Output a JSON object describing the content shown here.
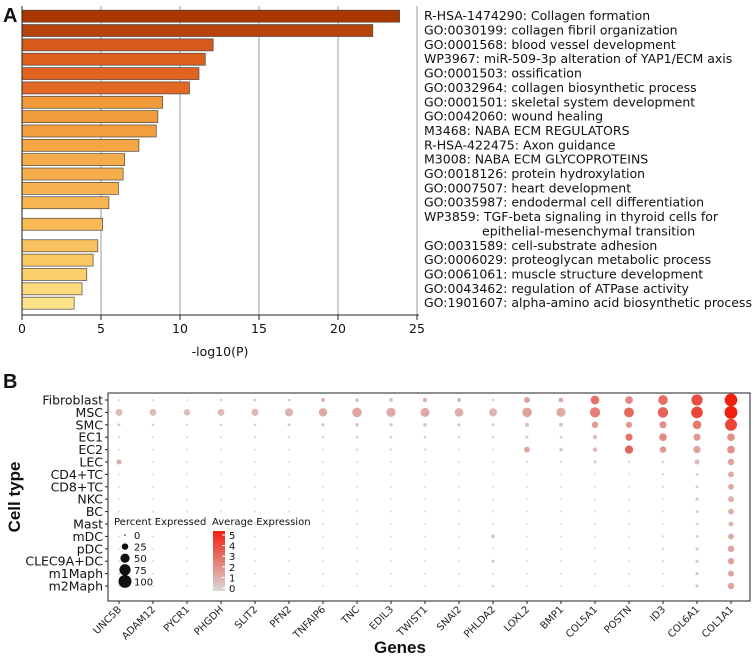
{
  "panel_a_label": "A",
  "panel_b_label": "B",
  "chart_data": [
    {
      "type": "bar",
      "orientation": "horizontal",
      "xlabel": "-log10(P)",
      "xlim": [
        0,
        25
      ],
      "xticks": [
        "0",
        "5",
        "10",
        "15",
        "20",
        "25"
      ],
      "grid": true,
      "terms": [
        {
          "lines": [
            "R-HSA-1474290: Collagen formation"
          ],
          "value": 23.9,
          "color": "#a83700"
        },
        {
          "lines": [
            "GO:0030199: collagen fibril organization"
          ],
          "value": 22.2,
          "color": "#b84308"
        },
        {
          "lines": [
            "GO:0001568: blood vessel development"
          ],
          "value": 12.1,
          "color": "#d85a1a"
        },
        {
          "lines": [
            "WP3967: miR-509-3p alteration of YAP1/ECM axis"
          ],
          "value": 11.6,
          "color": "#dd5f1e"
        },
        {
          "lines": [
            "GO:0001503: ossification"
          ],
          "value": 11.2,
          "color": "#e06322"
        },
        {
          "lines": [
            "GO:0032964: collagen biosynthetic process"
          ],
          "value": 10.6,
          "color": "#e26824"
        },
        {
          "lines": [
            "GO:0001501: skeletal system development"
          ],
          "value": 8.9,
          "color": "#f29a3a"
        },
        {
          "lines": [
            "GO:0042060: wound healing"
          ],
          "value": 8.6,
          "color": "#f39c3c"
        },
        {
          "lines": [
            "M3468: NABA ECM REGULATORS"
          ],
          "value": 8.5,
          "color": "#f39e3e"
        },
        {
          "lines": [
            "R-HSA-422475: Axon guidance"
          ],
          "value": 7.4,
          "color": "#f5a544"
        },
        {
          "lines": [
            "M3008: NABA ECM GLYCOPROTEINS"
          ],
          "value": 6.5,
          "color": "#f6ac4a"
        },
        {
          "lines": [
            "GO:0018126: protein hydroxylation"
          ],
          "value": 6.4,
          "color": "#f6ae4c"
        },
        {
          "lines": [
            "GO:0007507: heart development"
          ],
          "value": 6.1,
          "color": "#f7b14e"
        },
        {
          "lines": [
            "GO:0035987: endodermal cell differentiation"
          ],
          "value": 5.5,
          "color": "#f8b652"
        },
        {
          "lines": [
            "WP3859: TGF-beta signaling in thyroid cells for",
            "epithelial-mesenchymal transition"
          ],
          "value": 5.1,
          "color": "#f8ba55"
        },
        {
          "lines": [
            "GO:0031589: cell-substrate adhesion"
          ],
          "value": 4.8,
          "color": "#f9c25e"
        },
        {
          "lines": [
            "GO:0006029: proteoglycan metabolic process"
          ],
          "value": 4.5,
          "color": "#f9c863"
        },
        {
          "lines": [
            "GO:0061061: muscle structure development"
          ],
          "value": 4.1,
          "color": "#facf6c"
        },
        {
          "lines": [
            "GO:0043462: regulation of ATPase activity"
          ],
          "value": 3.8,
          "color": "#fbd97c"
        },
        {
          "lines": [
            "GO:1901607: alpha-amino acid biosynthetic process"
          ],
          "value": 3.3,
          "color": "#fce28a"
        }
      ]
    },
    {
      "type": "scatter",
      "subtype": "dotplot",
      "xlabel": "Genes",
      "ylabel": "Cell type",
      "genes": [
        "UNC5B",
        "ADAM12",
        "PYCR1",
        "PHGDH",
        "SLIT2",
        "PFN2",
        "TNFAIP6",
        "TNC",
        "EDIL3",
        "TWIST1",
        "SNAI2",
        "PHLDA2",
        "LOXL2",
        "BMP1",
        "COL5A1",
        "POSTN",
        "ID3",
        "COL6A1",
        "COL1A1"
      ],
      "cell_types": [
        "Fibroblast",
        "MSC",
        "SMC",
        "EC1",
        "EC2",
        "LEC",
        "CD4+TC",
        "CD8+TC",
        "NKC",
        "BC",
        "Mast",
        "mDC",
        "pDC",
        "CLEC9A+DC",
        "m1Maph",
        "m2Maph"
      ],
      "legend_size": {
        "title": "Percent Expressed",
        "values": [
          0,
          25,
          50,
          75,
          100
        ],
        "labels": [
          "0",
          "25",
          "50",
          "75",
          "100"
        ]
      },
      "legend_color": {
        "title": "Average Expression",
        "range": [
          0,
          5
        ],
        "labels": [
          "5",
          "4",
          "3",
          "2",
          "1",
          "0"
        ],
        "low_color": "#d9d9d9",
        "high_color": "#ef2010"
      },
      "percent": [
        [
          2,
          2,
          2,
          3,
          5,
          4,
          10,
          8,
          8,
          12,
          9,
          3,
          20,
          15,
          45,
          35,
          55,
          75,
          95
        ],
        [
          30,
          28,
          25,
          28,
          30,
          40,
          42,
          55,
          50,
          48,
          45,
          38,
          55,
          50,
          62,
          58,
          65,
          80,
          98
        ],
        [
          5,
          4,
          3,
          4,
          4,
          5,
          6,
          8,
          7,
          8,
          6,
          5,
          10,
          9,
          25,
          22,
          30,
          45,
          85
        ],
        [
          3,
          2,
          2,
          2,
          3,
          3,
          3,
          4,
          4,
          4,
          3,
          3,
          6,
          5,
          10,
          30,
          35,
          30,
          35
        ],
        [
          2,
          2,
          2,
          2,
          2,
          2,
          2,
          3,
          3,
          3,
          2,
          2,
          20,
          8,
          12,
          40,
          25,
          30,
          35
        ],
        [
          15,
          2,
          2,
          2,
          2,
          2,
          2,
          2,
          2,
          2,
          2,
          2,
          3,
          3,
          5,
          3,
          4,
          15,
          25
        ],
        [
          2,
          2,
          2,
          2,
          2,
          2,
          2,
          2,
          2,
          2,
          2,
          2,
          2,
          2,
          2,
          2,
          3,
          5,
          20
        ],
        [
          2,
          2,
          2,
          2,
          2,
          2,
          2,
          2,
          2,
          2,
          2,
          2,
          2,
          2,
          2,
          2,
          3,
          5,
          20
        ],
        [
          2,
          2,
          2,
          2,
          2,
          2,
          2,
          2,
          2,
          2,
          2,
          2,
          2,
          2,
          2,
          2,
          2,
          6,
          20
        ],
        [
          2,
          2,
          2,
          2,
          2,
          2,
          2,
          2,
          2,
          2,
          2,
          2,
          2,
          2,
          2,
          2,
          2,
          5,
          20
        ],
        [
          2,
          2,
          2,
          2,
          2,
          2,
          2,
          2,
          2,
          2,
          2,
          2,
          2,
          2,
          2,
          2,
          2,
          4,
          15
        ],
        [
          2,
          2,
          2,
          2,
          2,
          2,
          2,
          2,
          2,
          2,
          2,
          8,
          2,
          2,
          2,
          2,
          3,
          5,
          20
        ],
        [
          2,
          2,
          2,
          2,
          2,
          2,
          2,
          2,
          2,
          2,
          2,
          2,
          2,
          2,
          2,
          2,
          3,
          6,
          25
        ],
        [
          2,
          2,
          2,
          2,
          2,
          2,
          2,
          2,
          2,
          2,
          2,
          6,
          2,
          2,
          2,
          2,
          3,
          6,
          25
        ],
        [
          2,
          2,
          2,
          2,
          2,
          2,
          2,
          2,
          2,
          2,
          2,
          2,
          2,
          2,
          2,
          2,
          2,
          6,
          22
        ],
        [
          2,
          2,
          2,
          2,
          2,
          2,
          2,
          2,
          2,
          2,
          2,
          4,
          2,
          2,
          2,
          2,
          2,
          6,
          25
        ]
      ],
      "expression": [
        [
          0.3,
          0.3,
          0.3,
          0.4,
          0.6,
          0.5,
          1.0,
          0.8,
          0.8,
          1.0,
          0.9,
          0.4,
          1.6,
          1.2,
          2.8,
          2.2,
          2.9,
          3.8,
          5.0
        ],
        [
          0.8,
          0.8,
          0.7,
          0.8,
          0.9,
          1.0,
          1.3,
          1.4,
          1.3,
          1.3,
          1.2,
          1.0,
          1.5,
          1.3,
          2.4,
          3.0,
          3.2,
          4.0,
          5.3
        ],
        [
          0.4,
          0.3,
          0.3,
          0.3,
          0.3,
          0.4,
          0.5,
          0.6,
          0.5,
          0.6,
          0.5,
          0.4,
          0.7,
          0.6,
          1.6,
          1.8,
          2.0,
          2.6,
          4.0
        ],
        [
          0.2,
          0.2,
          0.2,
          0.2,
          0.2,
          0.2,
          0.2,
          0.3,
          0.3,
          0.3,
          0.2,
          0.2,
          0.4,
          0.3,
          0.8,
          2.8,
          2.2,
          1.8,
          2.0
        ],
        [
          0.2,
          0.2,
          0.2,
          0.2,
          0.2,
          0.2,
          0.2,
          0.2,
          0.2,
          0.2,
          0.2,
          0.2,
          1.4,
          0.6,
          0.8,
          3.2,
          1.8,
          1.6,
          2.0
        ],
        [
          1.2,
          0.2,
          0.2,
          0.2,
          0.2,
          0.2,
          0.2,
          0.2,
          0.2,
          0.2,
          0.2,
          0.2,
          0.2,
          0.2,
          0.3,
          0.2,
          0.3,
          0.8,
          1.5
        ],
        [
          0.1,
          0.1,
          0.1,
          0.1,
          0.1,
          0.1,
          0.1,
          0.1,
          0.1,
          0.1,
          0.1,
          0.1,
          0.1,
          0.1,
          0.1,
          0.1,
          0.2,
          0.4,
          1.3
        ],
        [
          0.1,
          0.1,
          0.1,
          0.1,
          0.1,
          0.1,
          0.1,
          0.1,
          0.1,
          0.1,
          0.1,
          0.1,
          0.1,
          0.1,
          0.1,
          0.1,
          0.2,
          0.4,
          1.3
        ],
        [
          0.1,
          0.1,
          0.1,
          0.1,
          0.1,
          0.1,
          0.1,
          0.1,
          0.1,
          0.1,
          0.1,
          0.1,
          0.1,
          0.1,
          0.1,
          0.1,
          0.1,
          0.5,
          1.2
        ],
        [
          0.1,
          0.1,
          0.1,
          0.1,
          0.1,
          0.1,
          0.1,
          0.1,
          0.1,
          0.1,
          0.1,
          0.1,
          0.1,
          0.1,
          0.1,
          0.1,
          0.1,
          0.4,
          1.2
        ],
        [
          0.1,
          0.1,
          0.1,
          0.1,
          0.1,
          0.1,
          0.1,
          0.1,
          0.1,
          0.1,
          0.1,
          0.1,
          0.1,
          0.1,
          0.1,
          0.1,
          0.1,
          0.3,
          1.0
        ],
        [
          0.1,
          0.1,
          0.1,
          0.1,
          0.1,
          0.1,
          0.1,
          0.1,
          0.1,
          0.1,
          0.1,
          0.6,
          0.1,
          0.1,
          0.1,
          0.1,
          0.2,
          0.4,
          1.3
        ],
        [
          0.1,
          0.1,
          0.1,
          0.1,
          0.1,
          0.1,
          0.1,
          0.1,
          0.1,
          0.1,
          0.1,
          0.1,
          0.1,
          0.1,
          0.1,
          0.1,
          0.2,
          0.5,
          1.5
        ],
        [
          0.1,
          0.1,
          0.1,
          0.1,
          0.1,
          0.1,
          0.1,
          0.1,
          0.1,
          0.1,
          0.1,
          0.5,
          0.1,
          0.1,
          0.1,
          0.1,
          0.2,
          0.5,
          1.5
        ],
        [
          0.1,
          0.1,
          0.1,
          0.1,
          0.1,
          0.1,
          0.1,
          0.1,
          0.1,
          0.1,
          0.1,
          0.1,
          0.1,
          0.1,
          0.1,
          0.1,
          0.1,
          0.5,
          1.4
        ],
        [
          0.1,
          0.1,
          0.1,
          0.1,
          0.1,
          0.1,
          0.1,
          0.1,
          0.1,
          0.1,
          0.1,
          0.3,
          0.1,
          0.1,
          0.1,
          0.1,
          0.1,
          0.5,
          1.5
        ]
      ]
    }
  ]
}
